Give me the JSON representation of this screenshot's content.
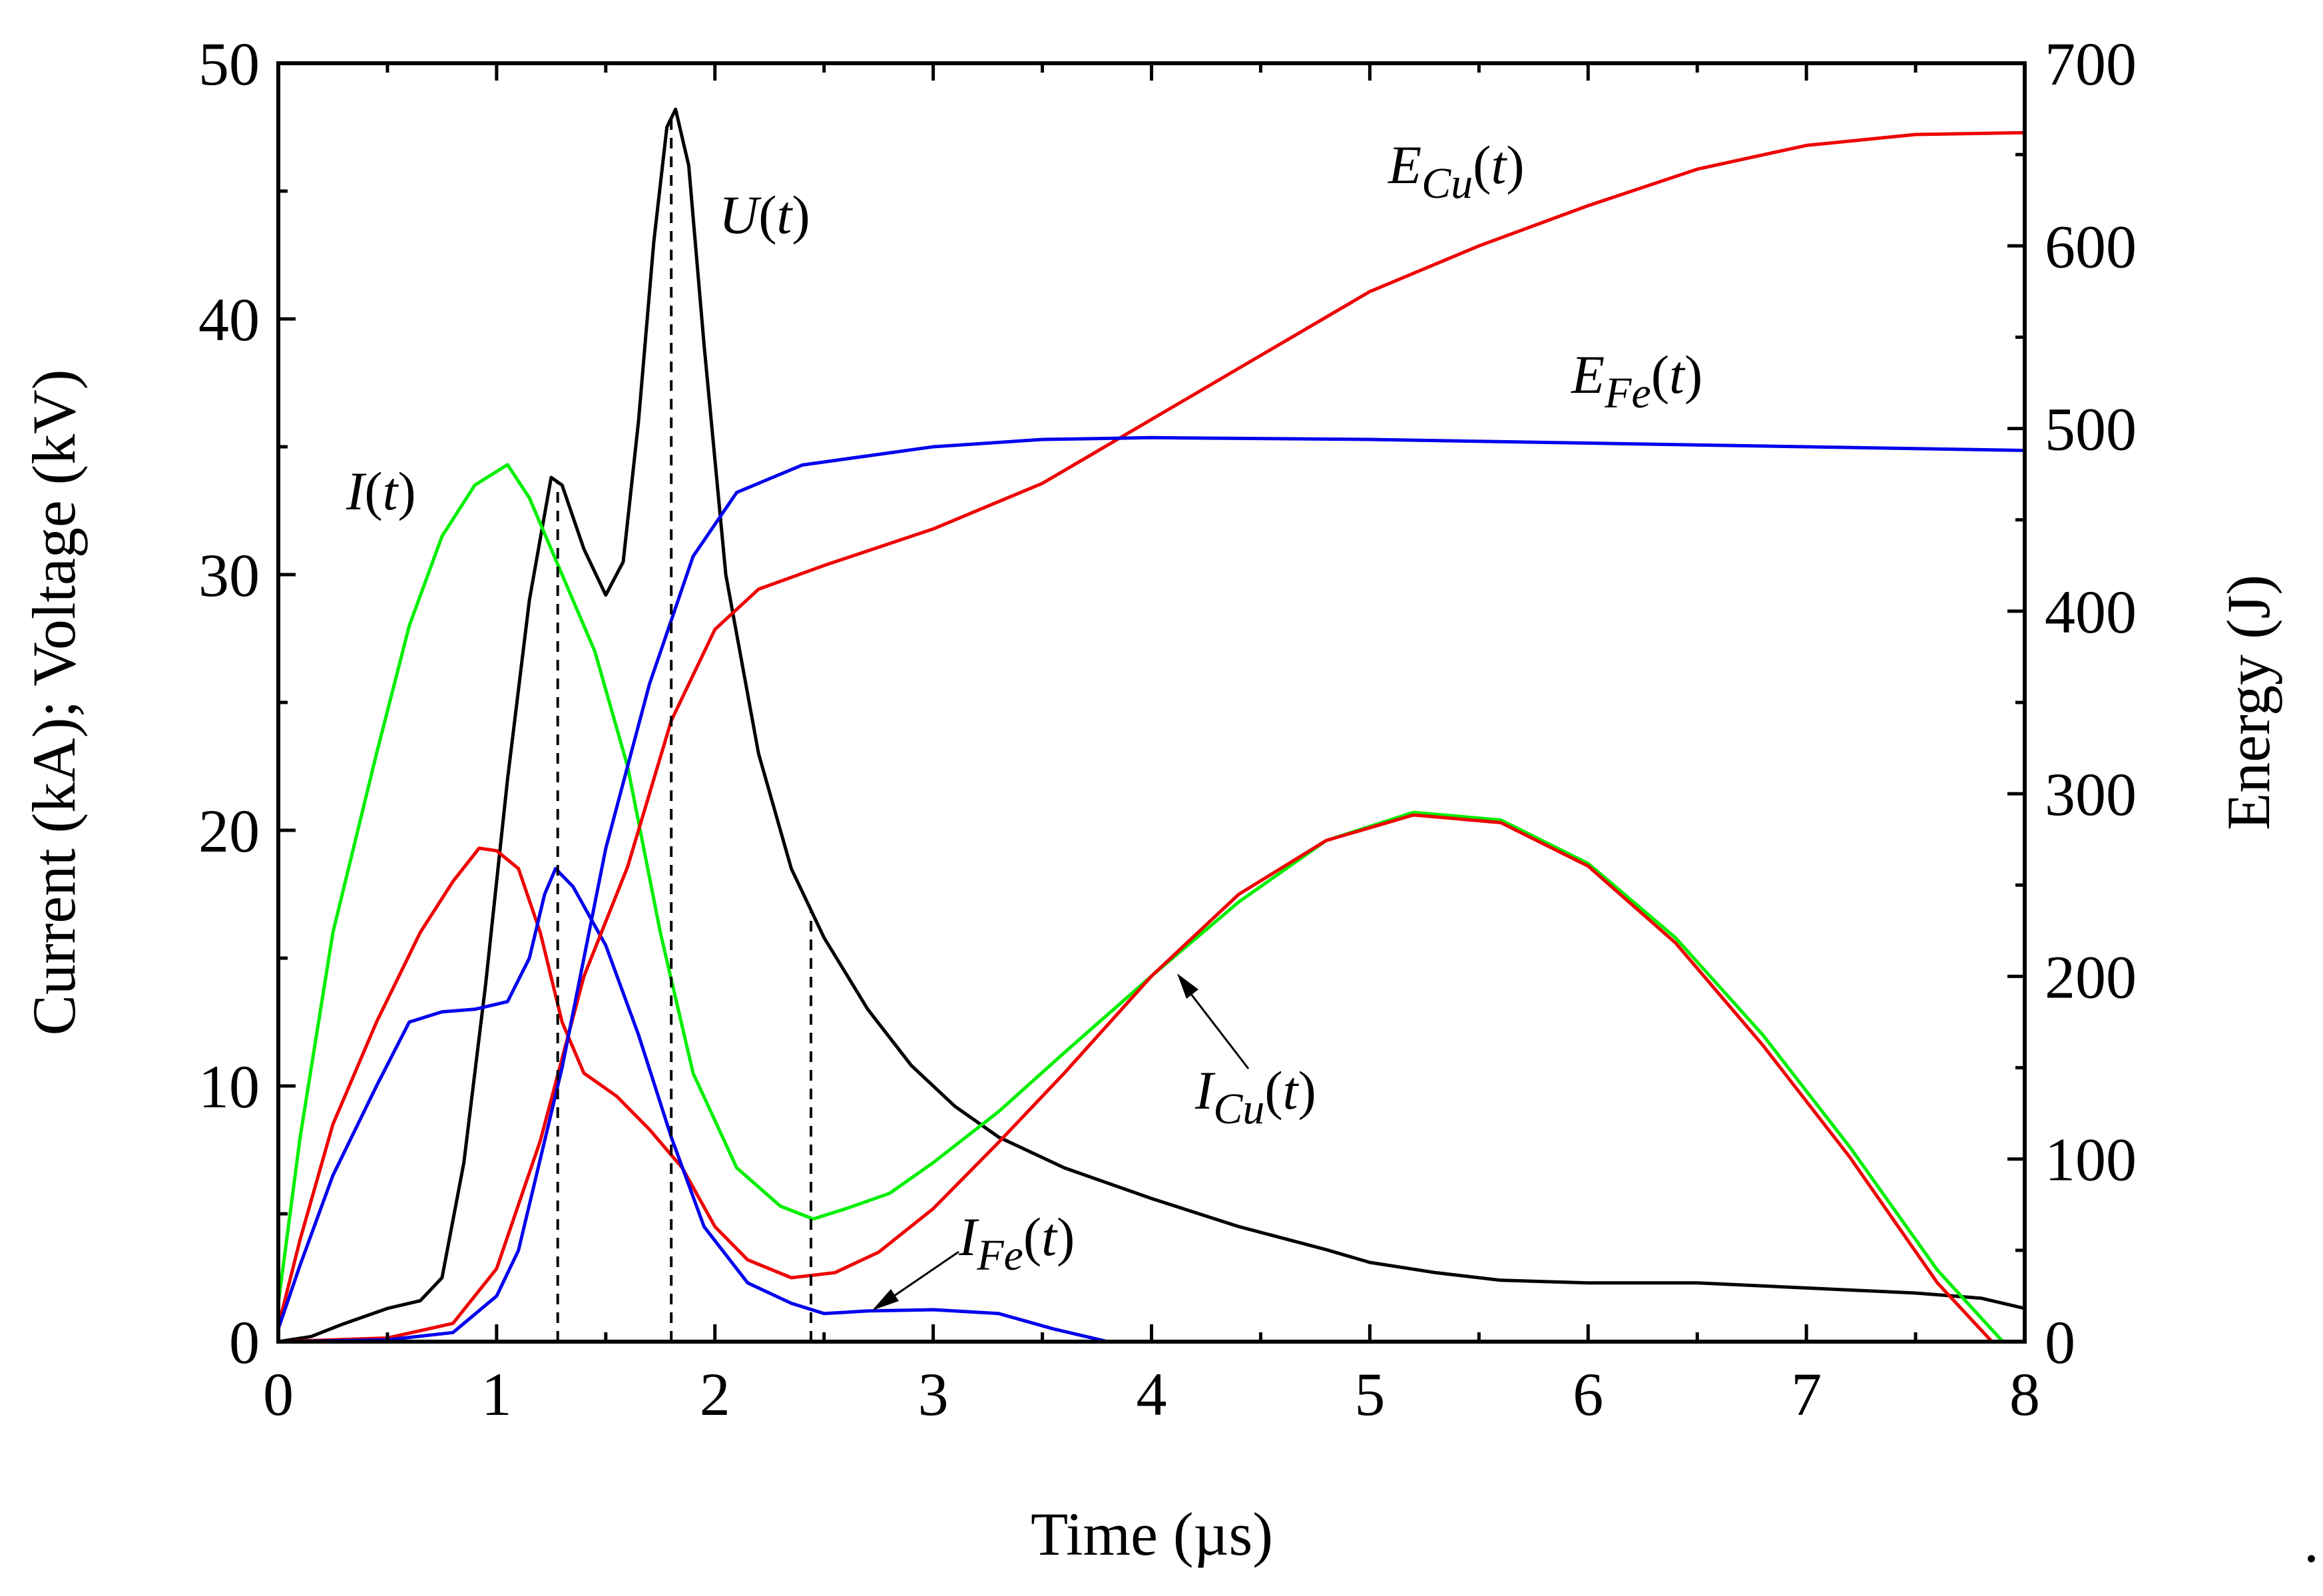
{
  "chart_data": {
    "type": "line",
    "title": "",
    "xlabel": "Time (µs)",
    "ylabel_left": "Current (kA); Voltage (kV)",
    "ylabel_right": "Energy (J)",
    "xlim": [
      0,
      8
    ],
    "ylim_left": [
      0,
      50
    ],
    "ylim_right": [
      0,
      700
    ],
    "x_ticks": [
      "0",
      "1",
      "2",
      "3",
      "4",
      "5",
      "6",
      "7",
      "8"
    ],
    "y_left_ticks": [
      "0",
      "10",
      "20",
      "30",
      "40",
      "50"
    ],
    "y_right_ticks": [
      "0",
      "100",
      "200",
      "300",
      "400",
      "500",
      "600",
      "700"
    ],
    "grid": false,
    "vertical_markers_us": [
      1.28,
      1.8,
      2.44
    ],
    "series": [
      {
        "name": "U(t)",
        "axis": "left",
        "color": "#000000",
        "points": [
          [
            0,
            0
          ],
          [
            0.15,
            0.2
          ],
          [
            0.3,
            0.7
          ],
          [
            0.5,
            1.3
          ],
          [
            0.65,
            1.6
          ],
          [
            0.75,
            2.5
          ],
          [
            0.85,
            7
          ],
          [
            0.95,
            14
          ],
          [
            1.05,
            22
          ],
          [
            1.15,
            29
          ],
          [
            1.25,
            33.8
          ],
          [
            1.3,
            33.5
          ],
          [
            1.4,
            31
          ],
          [
            1.5,
            29.2
          ],
          [
            1.58,
            30.5
          ],
          [
            1.65,
            36
          ],
          [
            1.72,
            43
          ],
          [
            1.78,
            47.5
          ],
          [
            1.82,
            48.2
          ],
          [
            1.88,
            46
          ],
          [
            1.95,
            39
          ],
          [
            2.05,
            30
          ],
          [
            2.2,
            23
          ],
          [
            2.35,
            18.5
          ],
          [
            2.5,
            15.8
          ],
          [
            2.7,
            13
          ],
          [
            2.9,
            10.8
          ],
          [
            3.1,
            9.2
          ],
          [
            3.3,
            8
          ],
          [
            3.6,
            6.8
          ],
          [
            4.0,
            5.6
          ],
          [
            4.4,
            4.5
          ],
          [
            4.8,
            3.6
          ],
          [
            5.0,
            3.1
          ],
          [
            5.3,
            2.7
          ],
          [
            5.6,
            2.4
          ],
          [
            6.0,
            2.3
          ],
          [
            6.5,
            2.3
          ],
          [
            7.0,
            2.1
          ],
          [
            7.5,
            1.9
          ],
          [
            7.8,
            1.7
          ],
          [
            8.0,
            1.3
          ]
        ]
      },
      {
        "name": "I(t)",
        "axis": "left",
        "color": "#00ee00",
        "points": [
          [
            0,
            1.5
          ],
          [
            0.1,
            8
          ],
          [
            0.25,
            16
          ],
          [
            0.45,
            23
          ],
          [
            0.6,
            28
          ],
          [
            0.75,
            31.5
          ],
          [
            0.9,
            33.5
          ],
          [
            1.05,
            34.3
          ],
          [
            1.15,
            33
          ],
          [
            1.3,
            30
          ],
          [
            1.45,
            27
          ],
          [
            1.6,
            22.5
          ],
          [
            1.75,
            16
          ],
          [
            1.9,
            10.5
          ],
          [
            2.1,
            6.8
          ],
          [
            2.3,
            5.3
          ],
          [
            2.45,
            4.8
          ],
          [
            2.6,
            5.2
          ],
          [
            2.8,
            5.8
          ],
          [
            3.0,
            7
          ],
          [
            3.3,
            9
          ],
          [
            3.6,
            11.3
          ],
          [
            4.0,
            14.3
          ],
          [
            4.4,
            17.2
          ],
          [
            4.8,
            19.6
          ],
          [
            5.2,
            20.7
          ],
          [
            5.6,
            20.4
          ],
          [
            6.0,
            18.7
          ],
          [
            6.4,
            15.8
          ],
          [
            6.8,
            12
          ],
          [
            7.2,
            7.6
          ],
          [
            7.6,
            2.8
          ],
          [
            7.9,
            0
          ]
        ]
      },
      {
        "name": "I_Cu(t)",
        "axis": "left",
        "color": "#ee0000",
        "points": [
          [
            0,
            0.6
          ],
          [
            0.1,
            4
          ],
          [
            0.25,
            8.5
          ],
          [
            0.45,
            12.5
          ],
          [
            0.65,
            16
          ],
          [
            0.8,
            18
          ],
          [
            0.92,
            19.3
          ],
          [
            1.0,
            19.2
          ],
          [
            1.1,
            18.5
          ],
          [
            1.2,
            16
          ],
          [
            1.3,
            12.5
          ],
          [
            1.4,
            10.5
          ],
          [
            1.55,
            9.6
          ],
          [
            1.7,
            8.3
          ],
          [
            1.85,
            6.8
          ],
          [
            2.0,
            4.5
          ],
          [
            2.15,
            3.2
          ],
          [
            2.35,
            2.5
          ],
          [
            2.55,
            2.7
          ],
          [
            2.75,
            3.5
          ],
          [
            3.0,
            5.2
          ],
          [
            3.3,
            7.8
          ],
          [
            3.6,
            10.5
          ],
          [
            4.0,
            14.3
          ],
          [
            4.4,
            17.5
          ],
          [
            4.8,
            19.6
          ],
          [
            5.2,
            20.6
          ],
          [
            5.6,
            20.3
          ],
          [
            6.0,
            18.6
          ],
          [
            6.4,
            15.6
          ],
          [
            6.8,
            11.6
          ],
          [
            7.2,
            7.2
          ],
          [
            7.6,
            2.3
          ],
          [
            7.85,
            0
          ]
        ]
      },
      {
        "name": "I_Fe(t)",
        "axis": "left",
        "color": "#0000ee",
        "points": [
          [
            0,
            0.5
          ],
          [
            0.1,
            3
          ],
          [
            0.25,
            6.5
          ],
          [
            0.45,
            10
          ],
          [
            0.6,
            12.5
          ],
          [
            0.75,
            12.9
          ],
          [
            0.9,
            13
          ],
          [
            1.05,
            13.3
          ],
          [
            1.15,
            15
          ],
          [
            1.22,
            17.5
          ],
          [
            1.27,
            18.5
          ],
          [
            1.35,
            17.8
          ],
          [
            1.5,
            15.5
          ],
          [
            1.65,
            12
          ],
          [
            1.8,
            8
          ],
          [
            1.95,
            4.5
          ],
          [
            2.15,
            2.3
          ],
          [
            2.35,
            1.5
          ],
          [
            2.5,
            1.1
          ],
          [
            2.7,
            1.2
          ],
          [
            3.0,
            1.25
          ],
          [
            3.3,
            1.1
          ],
          [
            3.55,
            0.5
          ],
          [
            3.8,
            0
          ]
        ]
      },
      {
        "name": "E_Cu(t)",
        "axis": "right",
        "color": "#ee0000",
        "points": [
          [
            0,
            0
          ],
          [
            0.5,
            2
          ],
          [
            0.8,
            10
          ],
          [
            1.0,
            40
          ],
          [
            1.2,
            110
          ],
          [
            1.4,
            200
          ],
          [
            1.6,
            260
          ],
          [
            1.8,
            340
          ],
          [
            2.0,
            390
          ],
          [
            2.2,
            412
          ],
          [
            2.5,
            425
          ],
          [
            3.0,
            445
          ],
          [
            3.5,
            470
          ],
          [
            4.0,
            505
          ],
          [
            4.5,
            540
          ],
          [
            5.0,
            575
          ],
          [
            5.5,
            600
          ],
          [
            6.0,
            622
          ],
          [
            6.5,
            642
          ],
          [
            7.0,
            655
          ],
          [
            7.5,
            661
          ],
          [
            8.0,
            662
          ]
        ]
      },
      {
        "name": "E_Fe(t)",
        "axis": "right",
        "color": "#0000ee",
        "points": [
          [
            0,
            0
          ],
          [
            0.5,
            1
          ],
          [
            0.8,
            5
          ],
          [
            1.0,
            25
          ],
          [
            1.1,
            50
          ],
          [
            1.3,
            150
          ],
          [
            1.5,
            270
          ],
          [
            1.7,
            360
          ],
          [
            1.9,
            430
          ],
          [
            2.1,
            465
          ],
          [
            2.4,
            480
          ],
          [
            3.0,
            490
          ],
          [
            3.5,
            494
          ],
          [
            4.0,
            495
          ],
          [
            5.0,
            494
          ],
          [
            6.0,
            492
          ],
          [
            7.0,
            490
          ],
          [
            8.0,
            488
          ]
        ]
      }
    ],
    "annotations": [
      {
        "base": "U",
        "sub": "",
        "arg": "t"
      },
      {
        "base": "I",
        "sub": "",
        "arg": "t"
      },
      {
        "base": "E",
        "sub": "Cu",
        "arg": "t"
      },
      {
        "base": "E",
        "sub": "Fe",
        "arg": "t"
      },
      {
        "base": "I",
        "sub": "Cu",
        "arg": "t"
      },
      {
        "base": "I",
        "sub": "Fe",
        "arg": "t"
      }
    ],
    "trailing_mark": "."
  }
}
